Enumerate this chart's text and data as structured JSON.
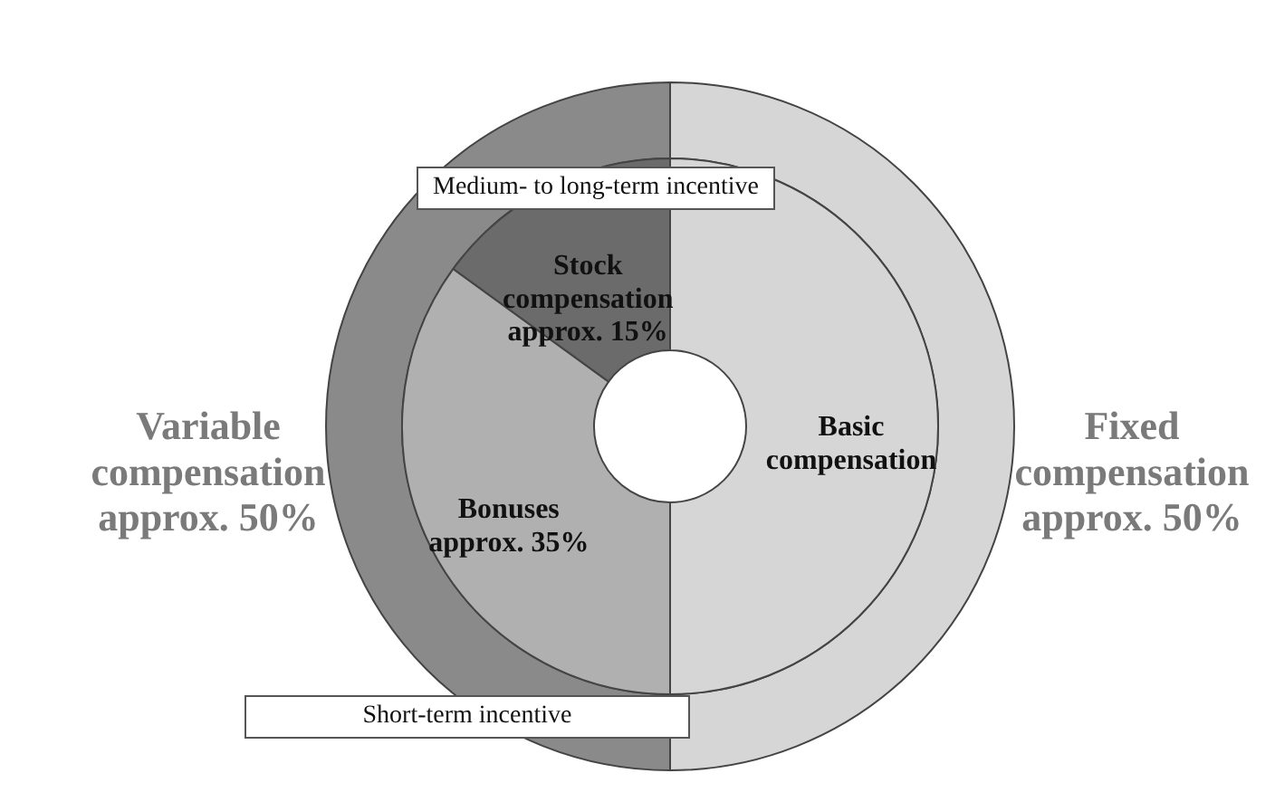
{
  "chart_data": [
    {
      "type": "donut",
      "categories": [
        "Fixed compensation approx. 50%",
        "Variable compensation approx. 50%"
      ],
      "values": [
        50,
        50
      ],
      "colors": [
        "#d6d6d6",
        "#8a8a8a"
      ],
      "annotations": [
        "Medium- to long-term incentive",
        "Short-term incentive"
      ]
    },
    {
      "type": "donut",
      "categories": [
        "Basic compensation",
        "Bonuses approx. 35%",
        "Stock compensation approx. 15%"
      ],
      "values": [
        50,
        35,
        15
      ],
      "colors": [
        "#d6d6d6",
        "#b0b0b0",
        "#6b6b6b"
      ]
    }
  ]
}
